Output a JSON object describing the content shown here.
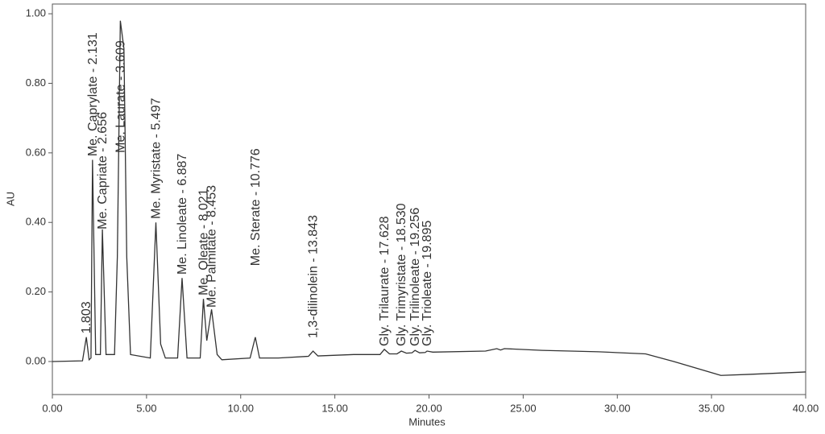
{
  "chart_data": {
    "type": "line",
    "xlabel": "Minutes",
    "ylabel": "AU",
    "xlim": [
      0,
      40
    ],
    "ylim": [
      -0.095,
      1.028
    ],
    "xticks": [
      {
        "value": 0,
        "label": "0.00"
      },
      {
        "value": 5,
        "label": "5.00"
      },
      {
        "value": 10,
        "label": "10.00"
      },
      {
        "value": 15,
        "label": "15.00"
      },
      {
        "value": 20,
        "label": "20.00"
      },
      {
        "value": 25,
        "label": "25.00"
      },
      {
        "value": 30,
        "label": "30.00"
      },
      {
        "value": 35,
        "label": "35.00"
      },
      {
        "value": 40,
        "label": "40.00"
      }
    ],
    "yticks": [
      {
        "value": 0,
        "label": "0.00"
      },
      {
        "value": 0.2,
        "label": "0.20"
      },
      {
        "value": 0.4,
        "label": "0.40"
      },
      {
        "value": 0.6,
        "label": "0.60"
      },
      {
        "value": 0.8,
        "label": "0.80"
      },
      {
        "value": 1,
        "label": "1.00"
      }
    ],
    "color": "#333333",
    "x": [
      0,
      1.6,
      1.803,
      1.95,
      2.05,
      2.131,
      2.3,
      2.55,
      2.656,
      2.85,
      3.3,
      3.45,
      3.609,
      3.8,
      3.95,
      4.15,
      5.2,
      5.497,
      5.75,
      6.0,
      6.65,
      6.887,
      7.15,
      7.85,
      8.021,
      8.2,
      8.453,
      8.75,
      9.0,
      10.5,
      10.776,
      11.0,
      12,
      13.6,
      13.843,
      14.1,
      16,
      17.4,
      17.628,
      17.9,
      18.3,
      18.53,
      18.8,
      19.1,
      19.256,
      19.5,
      19.8,
      19.895,
      20.2,
      23,
      23.6,
      23.8,
      24,
      26,
      29,
      31.5,
      33,
      35.5,
      37,
      40
    ],
    "values": [
      0,
      0.002,
      0.07,
      0.005,
      0.01,
      0.58,
      0.02,
      0.02,
      0.38,
      0.02,
      0.02,
      0.3,
      0.98,
      0.9,
      0.3,
      0.02,
      0.01,
      0.4,
      0.05,
      0.01,
      0.01,
      0.24,
      0.01,
      0.01,
      0.18,
      0.06,
      0.15,
      0.02,
      0.005,
      0.01,
      0.07,
      0.01,
      0.01,
      0.015,
      0.03,
      0.016,
      0.02,
      0.02,
      0.035,
      0.022,
      0.022,
      0.03,
      0.024,
      0.025,
      0.032,
      0.025,
      0.026,
      0.03,
      0.027,
      0.03,
      0.037,
      0.033,
      0.037,
      0.032,
      0.028,
      0.022,
      0,
      -0.04,
      -0.037,
      -0.03
    ],
    "annotations": [
      {
        "text": "1.803",
        "x": 1.803,
        "y": 0.08
      },
      {
        "text": "Me. Caprylate - 2.131",
        "x": 2.131,
        "y": 0.59
      },
      {
        "text": "Me. Capriate - 2.656",
        "x": 2.656,
        "y": 0.38
      },
      {
        "text": "Me. Laurate - 3.609",
        "x": 3.609,
        "y": 0.6
      },
      {
        "text": "Me. Myristate - 5.497",
        "x": 5.497,
        "y": 0.41
      },
      {
        "text": "Me. Linoleate - 6.887",
        "x": 6.887,
        "y": 0.25
      },
      {
        "text": "Me. Oleate - 8.021",
        "x": 8.021,
        "y": 0.19
      },
      {
        "text": "Me. Palmitate - 8.453",
        "x": 8.453,
        "y": 0.155
      },
      {
        "text": "Me. Sterate - 10.776",
        "x": 10.776,
        "y": 0.275
      },
      {
        "text": "1,3-dilinolein - 13.843",
        "x": 13.843,
        "y": 0.067
      },
      {
        "text": "Gly. Trilaurate - 17.628",
        "x": 17.628,
        "y": 0.044
      },
      {
        "text": "Gly. Trimyristate - 18.530",
        "x": 18.53,
        "y": 0.044
      },
      {
        "text": "Gly. Trilinoleate - 19.256",
        "x": 19.256,
        "y": 0.044
      },
      {
        "text": "Gly. Trioleate - 19.895",
        "x": 19.895,
        "y": 0.044
      }
    ]
  }
}
